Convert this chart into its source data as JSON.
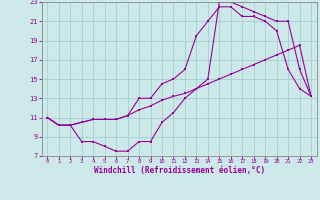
{
  "xlabel": "Windchill (Refroidissement éolien,°C)",
  "bg_color": "#cce8e8",
  "line_color": "#990099",
  "grid_color": "#99cccc",
  "xlim": [
    -0.5,
    23.5
  ],
  "ylim": [
    7,
    23
  ],
  "xticks": [
    0,
    1,
    2,
    3,
    4,
    5,
    6,
    7,
    8,
    9,
    10,
    11,
    12,
    13,
    14,
    15,
    16,
    17,
    18,
    19,
    20,
    21,
    22,
    23
  ],
  "yticks": [
    7,
    9,
    11,
    13,
    15,
    17,
    19,
    21,
    23
  ],
  "line1_x": [
    0,
    1,
    2,
    3,
    4,
    5,
    6,
    7,
    8,
    9,
    10,
    11,
    12,
    13,
    14,
    15,
    16,
    17,
    18,
    19,
    20,
    21,
    22,
    23
  ],
  "line1_y": [
    11.0,
    10.2,
    10.2,
    10.5,
    10.8,
    10.8,
    10.8,
    11.2,
    11.8,
    12.2,
    12.8,
    13.2,
    13.5,
    14.0,
    14.5,
    15.0,
    15.5,
    16.0,
    16.5,
    17.0,
    17.5,
    18.0,
    18.5,
    13.2
  ],
  "line2_x": [
    0,
    1,
    2,
    3,
    4,
    5,
    6,
    7,
    8,
    9,
    10,
    11,
    12,
    13,
    14,
    15,
    16,
    17,
    18,
    19,
    20,
    21,
    22,
    23
  ],
  "line2_y": [
    11.0,
    10.2,
    10.2,
    10.5,
    10.8,
    10.8,
    10.8,
    11.2,
    13.0,
    13.0,
    14.5,
    15.0,
    16.0,
    19.5,
    21.0,
    22.5,
    22.5,
    21.5,
    21.5,
    21.0,
    20.0,
    16.0,
    14.0,
    13.2
  ],
  "line3_x": [
    0,
    1,
    2,
    3,
    4,
    5,
    6,
    7,
    8,
    9,
    10,
    11,
    12,
    13,
    14,
    15,
    16,
    17,
    18,
    19,
    20,
    21,
    22,
    23
  ],
  "line3_y": [
    11.0,
    10.2,
    10.2,
    8.5,
    8.5,
    8.0,
    7.5,
    7.5,
    8.5,
    8.5,
    10.5,
    11.5,
    13.0,
    14.0,
    15.0,
    23.0,
    23.0,
    22.5,
    22.0,
    21.5,
    21.0,
    21.0,
    16.0,
    13.2
  ]
}
